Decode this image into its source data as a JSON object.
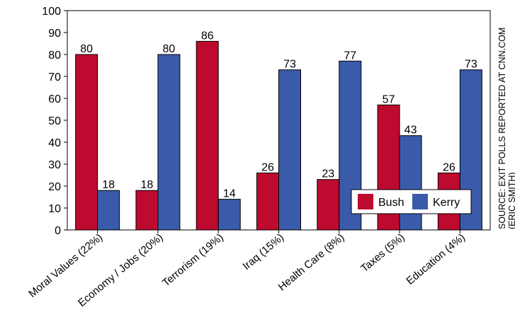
{
  "chart_data": {
    "type": "bar",
    "categories": [
      "Moral Values (22%)",
      "Economy / Jobs (20%)",
      "Terrorism (19%)",
      "Iraq (15%)",
      "Health Care (8%)",
      "Taxes (5%)",
      "Education (4%)"
    ],
    "series": [
      {
        "name": "Bush",
        "values": [
          80,
          18,
          86,
          26,
          23,
          57,
          26
        ],
        "color": "#be0a2f"
      },
      {
        "name": "Kerry",
        "values": [
          18,
          80,
          14,
          73,
          77,
          43,
          73
        ],
        "color": "#3a5ba9"
      }
    ],
    "ylim": [
      0,
      100
    ],
    "yticks": [
      0,
      10,
      20,
      30,
      40,
      50,
      60,
      70,
      80,
      90,
      100
    ],
    "grid": false,
    "legend_position": "bottom-right",
    "source_lines": [
      "SOURCE: EXIT POLLS REPORTED AT CNN.COM",
      "(ERIC SMITH)"
    ]
  }
}
